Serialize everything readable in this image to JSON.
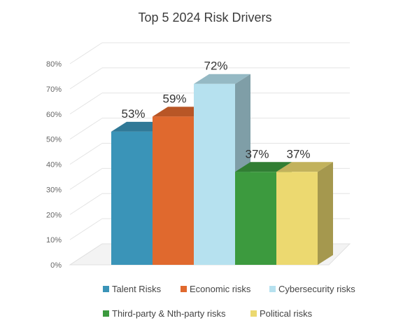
{
  "chart_data": {
    "type": "bar",
    "title": "Top 5 2024 Risk Drivers",
    "categories": [
      "Talent Risks",
      "Economic risks",
      "Cybersecurity risks",
      "Third-party & Nth-party risks",
      "Political risks"
    ],
    "values": [
      53,
      59,
      72,
      37,
      37
    ],
    "data_labels": [
      "53%",
      "59%",
      "72%",
      "37%",
      "37%"
    ],
    "ylim": [
      0,
      80
    ],
    "yticks": [
      "0%",
      "10%",
      "20%",
      "30%",
      "40%",
      "50%",
      "60%",
      "70%",
      "80%"
    ],
    "grid": true,
    "style": "3d",
    "legend_position": "bottom",
    "colors": [
      "#3a94b8",
      "#e0692e",
      "#b6e1ef",
      "#3c9a3e",
      "#ecd970"
    ]
  }
}
